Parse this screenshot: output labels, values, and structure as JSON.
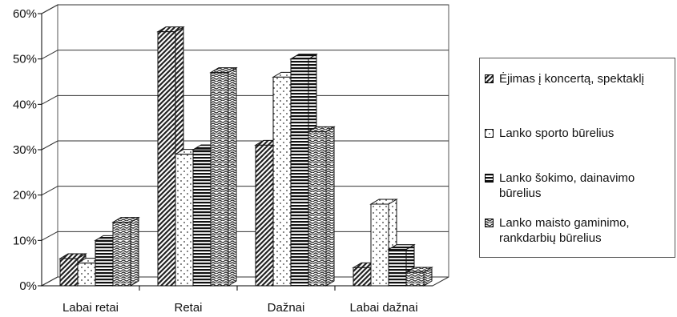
{
  "chart_data": {
    "type": "bar",
    "categories": [
      "Labai retai",
      "Retai",
      "Dažnai",
      "Labai dažnai"
    ],
    "series": [
      {
        "name": "Ėjimas į koncertą, spektaklį",
        "pattern": "diagonal",
        "values": [
          6,
          56,
          31,
          4
        ]
      },
      {
        "name": "Lanko sporto būrelius",
        "pattern": "dots",
        "values": [
          5,
          29,
          46,
          18
        ]
      },
      {
        "name": "Lanko šokimo, dainavimo būrelius",
        "pattern": "horizontal",
        "values": [
          10,
          30,
          50,
          8
        ]
      },
      {
        "name": "Lanko maisto gaminimo, rankdarbių būrelius",
        "pattern": "wave",
        "values": [
          14,
          47,
          34,
          3
        ]
      }
    ],
    "yticks": [
      "0%",
      "10%",
      "20%",
      "30%",
      "40%",
      "50%",
      "60%"
    ],
    "ylim": [
      0,
      60
    ],
    "grid": true,
    "legend_position": "right",
    "style": "3d-clustered-column"
  },
  "legend": {
    "items": [
      [
        "Ėjimas į koncertą, spektaklį"
      ],
      [
        "Lanko sporto būrelius"
      ],
      [
        "Lanko šokimo, dainavimo",
        "būrelius"
      ],
      [
        "Lanko maisto gaminimo,",
        "rankdarbių būrelius"
      ]
    ]
  }
}
